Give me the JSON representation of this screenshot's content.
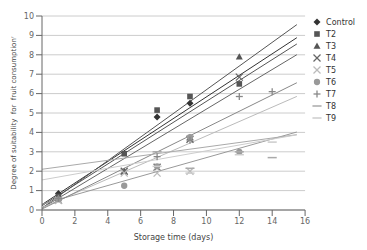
{
  "chart_data": {
    "type": "scatter",
    "xlabel": "Storage time (days)",
    "ylabel": "Degree of suitability  for  fruit consumptionʳ",
    "xlim": [
      0,
      16
    ],
    "ylim": [
      0,
      10
    ],
    "xticks": [
      0,
      2,
      4,
      6,
      8,
      10,
      12,
      14,
      16
    ],
    "yticks": [
      0,
      1,
      2,
      3,
      4,
      5,
      6,
      7,
      8,
      9,
      10
    ],
    "grid": true,
    "legend": "right",
    "series": [
      {
        "name": "Control",
        "marker": "diamond",
        "color": "#333333",
        "x": [
          1,
          7,
          9
        ],
        "values": [
          0.85,
          4.8,
          5.5
        ],
        "trend": {
          "x": [
            0,
            15.5
          ],
          "values": [
            0.28,
            8.8825
          ]
        }
      },
      {
        "name": "T2",
        "marker": "square",
        "color": "#555555",
        "x": [
          1,
          5,
          7,
          9,
          12
        ],
        "values": [
          0.7,
          2.9,
          5.15,
          5.85,
          6.5
        ],
        "trend": {
          "x": [
            0,
            15.5
          ],
          "values": [
            0.22,
            8.559
          ]
        }
      },
      {
        "name": "T3",
        "marker": "triangle",
        "color": "#555555",
        "x": [
          1,
          5,
          9,
          12
        ],
        "values": [
          0.6,
          2.0,
          3.75,
          7.9
        ],
        "trend": {
          "x": [
            0,
            15.5
          ],
          "values": [
            0.1,
            9.555
          ]
        }
      },
      {
        "name": "T4",
        "marker": "x",
        "color": "#666666",
        "x": [
          1,
          5,
          7,
          9,
          12
        ],
        "values": [
          0.5,
          2.0,
          2.2,
          3.65,
          6.85
        ],
        "trend": {
          "x": [
            0,
            15.5
          ],
          "values": [
            0.1,
            8.005
          ]
        }
      },
      {
        "name": "T5",
        "marker": "x",
        "color": "#bbbbbb",
        "x": [
          1,
          5,
          7,
          9
        ],
        "values": [
          0.5,
          1.9,
          1.9,
          2.0
        ],
        "trend": {
          "x": [
            0,
            15.5
          ],
          "values": [
            0.12,
            5.855
          ]
        }
      },
      {
        "name": "T6",
        "marker": "circle",
        "color": "#999999",
        "x": [
          1,
          5,
          7,
          9,
          12
        ],
        "values": [
          0.55,
          1.25,
          2.25,
          3.75,
          3.0
        ],
        "trend": {
          "x": [
            0,
            15.5
          ],
          "values": [
            0.3,
            4.02
          ]
        }
      },
      {
        "name": "T7",
        "marker": "plus",
        "color": "#888888",
        "x": [
          1,
          7,
          9,
          12,
          14
        ],
        "values": [
          0.6,
          2.75,
          3.6,
          5.85,
          6.1
        ],
        "trend": {
          "x": [
            0,
            15.5
          ],
          "values": [
            0.05,
            6.56
          ]
        }
      },
      {
        "name": "T8",
        "marker": "dash",
        "color": "#aaaaaa",
        "x": [
          7,
          9,
          12,
          14
        ],
        "values": [
          3.0,
          2.15,
          3.0,
          2.7
        ],
        "trend": {
          "x": [
            0,
            15.5
          ],
          "values": [
            2.1,
            3.8825
          ]
        }
      },
      {
        "name": "T9",
        "marker": "dash",
        "color": "#cccccc",
        "x": [
          7,
          9,
          12,
          14
        ],
        "values": [
          2.25,
          1.9,
          2.85,
          3.5
        ],
        "trend": {
          "x": [
            0,
            15.5
          ],
          "values": [
            1.55,
            3.875
          ]
        }
      }
    ]
  }
}
